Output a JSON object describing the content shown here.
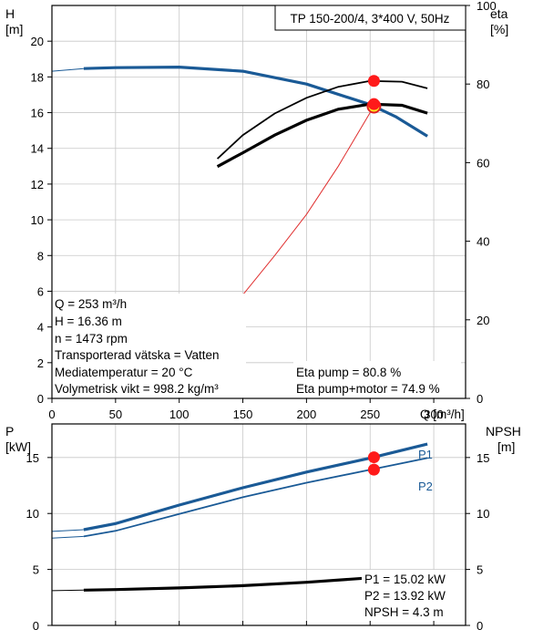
{
  "chart_data": [
    {
      "type": "line",
      "title": "TP 150-200/4, 3*400 V, 50Hz",
      "xlabel": "Q [m³/h]",
      "ylabel": [
        "H",
        "[m]"
      ],
      "ylabel_right": [
        "eta",
        "[%]"
      ],
      "xlim": [
        0,
        325
      ],
      "ylim": [
        0,
        22
      ],
      "ylim_right": [
        0,
        100
      ],
      "xticks": [
        "0",
        "50",
        "100",
        "150",
        "200",
        "250",
        "300"
      ],
      "yticks": [
        "0",
        "2",
        "4",
        "6",
        "8",
        "10",
        "12",
        "14",
        "16",
        "18",
        "20"
      ],
      "yticks_right": [
        "0",
        "20",
        "40",
        "60",
        "80",
        "100"
      ],
      "grid": true,
      "series": [
        {
          "key": "H",
          "color": "#1a5a96",
          "x": [
            25,
            50,
            100,
            150,
            200,
            250,
            270,
            295
          ],
          "y": [
            18.47,
            18.52,
            18.55,
            18.32,
            17.6,
            16.45,
            15.78,
            14.68
          ],
          "low_flow_x": [
            -25,
            25
          ],
          "low_flow_y": [
            18.32,
            18.47
          ]
        },
        {
          "key": "Eta pump",
          "color": "#000000",
          "x": [
            130,
            150,
            175,
            200,
            225,
            250,
            275,
            295
          ],
          "y": [
            61.0,
            67.0,
            72.5,
            76.5,
            79.3,
            80.8,
            80.6,
            78.9
          ]
        },
        {
          "key": "Eta pump+motor",
          "color": "#000000",
          "x": [
            130,
            150,
            175,
            200,
            225,
            250,
            275,
            295
          ],
          "y": [
            59.0,
            62.5,
            67.0,
            70.8,
            73.6,
            74.9,
            74.6,
            72.6
          ]
        },
        {
          "key": "system curve",
          "color": "#e03030",
          "x": [
            150,
            175,
            200,
            225,
            253
          ],
          "y": [
            5.8,
            8.0,
            10.3,
            13.0,
            16.36
          ]
        }
      ],
      "operating_point": {
        "Q": 253,
        "H": 16.36,
        "eta_pump": 80.8,
        "eta_pump_motor": 74.9
      },
      "info_lines": [
        "Q = 253 m³/h",
        "H = 16.36 m",
        "n = 1473 rpm",
        "Transporterad vätska = Vatten",
        "Mediatemperatur = 20 °C",
        "Volymetrisk vikt = 998.2 kg/m³"
      ],
      "eta_lines": [
        "Eta pump = 80.8 %",
        "Eta pump+motor = 74.9 %"
      ]
    },
    {
      "type": "line",
      "xlim": [
        0,
        325
      ],
      "ylim": [
        0,
        18
      ],
      "ylim_right": [
        0,
        18
      ],
      "ylabel": [
        "P",
        "[kW]"
      ],
      "ylabel_right": [
        "NPSH",
        "[m]"
      ],
      "yticks": [
        "0",
        "5",
        "10",
        "15"
      ],
      "yticks_right": [
        "0",
        "5",
        "10",
        "15"
      ],
      "grid": true,
      "series": [
        {
          "key": "P1",
          "name": "P1",
          "color": "#1a5a96",
          "x": [
            25,
            50,
            100,
            150,
            200,
            250,
            295
          ],
          "y": [
            8.55,
            9.1,
            10.75,
            12.3,
            13.7,
            14.95,
            16.2
          ],
          "low_flow_x": [
            -25,
            25
          ],
          "low_flow_y": [
            8.4,
            8.55
          ]
        },
        {
          "key": "P2",
          "name": "P2",
          "color": "#1a5a96",
          "x": [
            25,
            50,
            100,
            150,
            200,
            250,
            295
          ],
          "y": [
            7.95,
            8.45,
            9.95,
            11.45,
            12.75,
            13.9,
            14.95
          ],
          "low_flow_x": [
            -25,
            25
          ],
          "low_flow_y": [
            7.8,
            7.95
          ]
        },
        {
          "key": "NPSH",
          "color": "#000000",
          "x": [
            25,
            50,
            100,
            150,
            200,
            250
          ],
          "y": [
            3.15,
            3.2,
            3.35,
            3.55,
            3.85,
            4.25
          ],
          "low_flow_x": [
            -25,
            25
          ],
          "low_flow_y": [
            3.1,
            3.15
          ]
        }
      ],
      "operating_point": {
        "Q": 253,
        "P1": 15.02,
        "P2": 13.92,
        "NPSH": 4.3
      },
      "info_lines": [
        "P1 = 15.02 kW",
        "P2 = 13.92 kW",
        "NPSH = 4.3 m"
      ]
    }
  ]
}
